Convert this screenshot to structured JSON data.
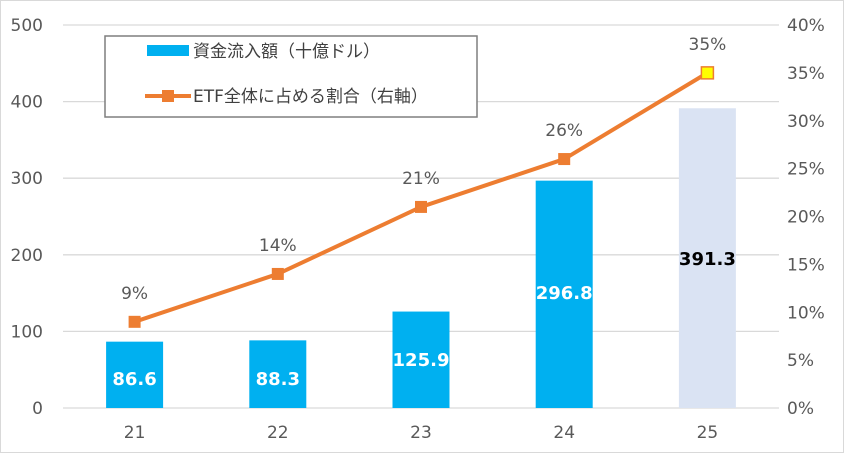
{
  "chart_data": {
    "type": "bar+line",
    "title": "",
    "categories": [
      "21",
      "22",
      "23",
      "24",
      "25"
    ],
    "xlabel": "",
    "ylabel": "",
    "ylim": [
      0,
      500
    ],
    "y_ticks": [
      "0",
      "100",
      "200",
      "300",
      "400",
      "500"
    ],
    "y2lim": [
      0,
      0.4
    ],
    "y2_ticks": [
      "0%",
      "5%",
      "10%",
      "15%",
      "20%",
      "25%",
      "30%",
      "35%",
      "40%"
    ],
    "grid": true,
    "legend_position": "upper-left (inside)",
    "series": [
      {
        "name": "資金流入額（十億ドル）",
        "type": "bar",
        "axis": "left",
        "values": [
          86.6,
          88.3,
          125.9,
          296.8,
          391.3
        ],
        "labels": [
          "86.6",
          "88.3",
          "125.9",
          "296.8",
          "391.3"
        ],
        "color": "#00b0f0",
        "highlight_last_color": "#dae3f3"
      },
      {
        "name": "ETF全体に占める割合（右軸）",
        "type": "line",
        "axis": "right",
        "values": [
          0.09,
          0.14,
          0.21,
          0.26,
          0.35
        ],
        "labels": [
          "9%",
          "14%",
          "21%",
          "26%",
          "35%"
        ],
        "color": "#ed7d31",
        "last_marker_fill": "#ffff00"
      }
    ]
  },
  "legend": {
    "bar_label": "資金流入額（十億ドル）",
    "line_label": "ETF全体に占める割合（右軸）"
  }
}
